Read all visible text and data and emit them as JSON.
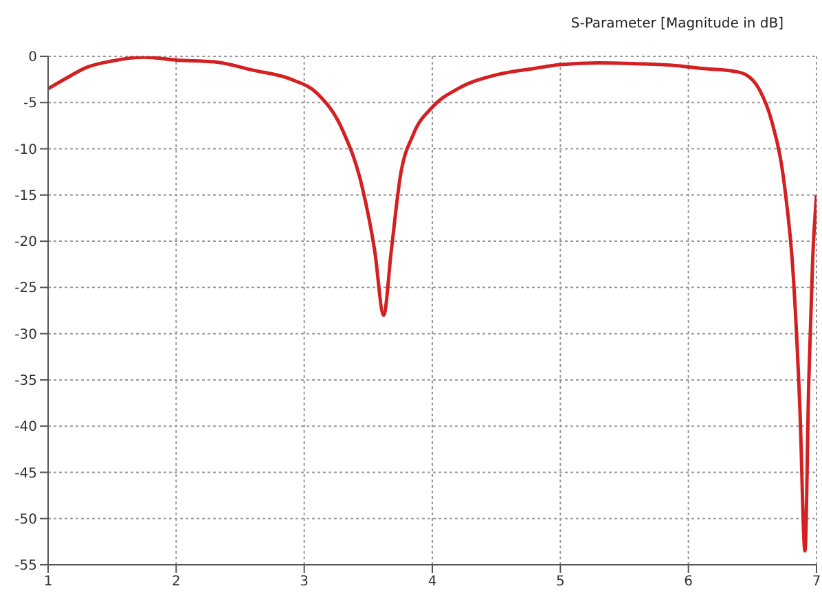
{
  "chart_data": {
    "type": "line",
    "title": "S-Parameter [Magnitude in dB]",
    "x": [
      1,
      1.15,
      1.3,
      1.5,
      1.75,
      2.0,
      2.3,
      2.6,
      2.9,
      3.1,
      3.3,
      3.45,
      3.55,
      3.62,
      3.68,
      3.75,
      3.85,
      4.0,
      4.2,
      4.5,
      4.8,
      5.0,
      5.3,
      5.6,
      5.9,
      6.1,
      6.35,
      6.45,
      6.55,
      6.65,
      6.75,
      6.82,
      6.87,
      6.91,
      6.94,
      6.97,
      7.0
    ],
    "series": [
      {
        "color": "#d42020",
        "values": [
          -3.5,
          -2.3,
          -1.2,
          -0.5,
          -0.1,
          -0.4,
          -0.6,
          -1.5,
          -2.5,
          -4,
          -8,
          -14,
          -21,
          -28,
          -21,
          -13,
          -8.5,
          -5.5,
          -3.5,
          -2,
          -1.3,
          -0.9,
          -0.7,
          -0.8,
          -1,
          -1.3,
          -1.6,
          -2,
          -3.5,
          -7,
          -14,
          -24,
          -38,
          -53.5,
          -35,
          -22,
          -15
        ]
      }
    ],
    "xlim": [
      1,
      7
    ],
    "xticks": [
      1,
      2,
      3,
      4,
      5,
      6,
      7
    ],
    "ylim": [
      -55,
      0
    ],
    "yticks": [
      0,
      -5,
      -10,
      -15,
      -20,
      -25,
      -30,
      -35,
      -40,
      -45,
      -50,
      -55
    ],
    "grid": true,
    "marker": "none",
    "line_style": "solid"
  }
}
